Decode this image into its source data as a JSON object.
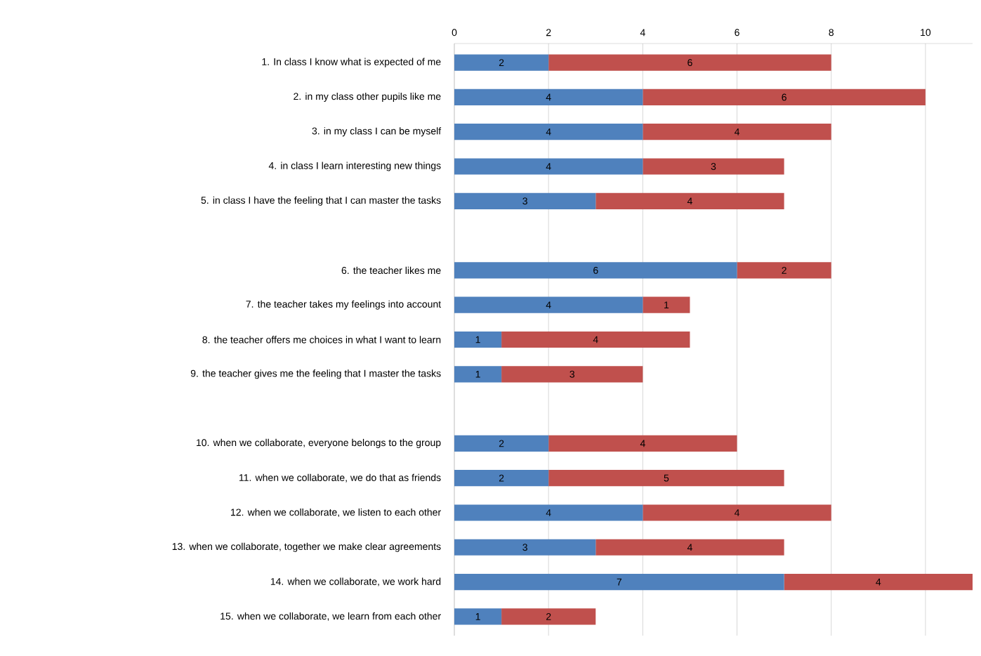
{
  "chart_data": {
    "type": "bar",
    "orientation": "horizontal",
    "stacked": true,
    "data_labels": true,
    "grid": "x",
    "categories": [
      "1. In class I know what is expected of me",
      "2. in my class other pupils like me",
      "3. in my class I can be myself",
      "4. in class I learn interesting new things",
      "5. in class I have the feeling that I can master the tasks",
      null,
      "6. the teacher likes me",
      "7. the teacher takes my feelings into account",
      "8. the teacher offers me choices in what I want to learn",
      "9. the teacher gives me the feeling that I master the tasks",
      null,
      "10. when we collaborate, everyone belongs to the group",
      "11. when we collaborate, we do that as friends",
      "12. when we collaborate, we listen to each other",
      "13. when we collaborate, together we make clear agreements",
      "14. when we collaborate, we work hard",
      "15. when we collaborate, we learn from each other"
    ],
    "series": [
      {
        "color": "#4f81bd",
        "values": [
          2,
          4,
          4,
          4,
          3,
          null,
          6,
          4,
          1,
          1,
          null,
          2,
          2,
          4,
          3,
          7,
          1
        ]
      },
      {
        "color": "#c0504d",
        "values": [
          6,
          6,
          4,
          3,
          4,
          null,
          2,
          1,
          4,
          3,
          null,
          4,
          5,
          4,
          4,
          4,
          2
        ]
      }
    ],
    "xlim": [
      0,
      11
    ],
    "xticks": [
      0,
      2,
      4,
      6,
      8,
      10
    ]
  }
}
